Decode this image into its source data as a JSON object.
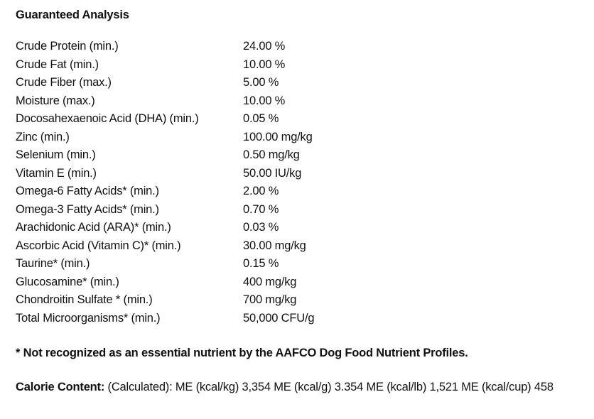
{
  "title": "Guaranteed Analysis",
  "table": {
    "rows": [
      [
        "Crude Protein (min.)",
        "24.00 %"
      ],
      [
        "Crude Fat (min.)",
        "10.00 %"
      ],
      [
        "Crude Fiber (max.)",
        "5.00 %"
      ],
      [
        "Moisture (max.)",
        "10.00 %"
      ],
      [
        "Docosahexaenoic Acid (DHA) (min.)",
        "0.05 %"
      ],
      [
        "Zinc (min.)",
        "100.00 mg/kg"
      ],
      [
        "Selenium (min.)",
        "0.50 mg/kg"
      ],
      [
        "Vitamin E (min.)",
        "50.00 IU/kg"
      ],
      [
        "Omega-6 Fatty Acids* (min.)",
        "2.00 %"
      ],
      [
        "Omega-3 Fatty Acids* (min.)",
        "0.70 %"
      ],
      [
        "Arachidonic Acid (ARA)* (min.)",
        "0.03 %"
      ],
      [
        "Ascorbic Acid (Vitamin C)* (min.)",
        "30.00 mg/kg"
      ],
      [
        "Taurine* (min.)",
        "0.15 %"
      ],
      [
        "Glucosamine* (min.)",
        "400 mg/kg"
      ],
      [
        "Chondroitin Sulfate * (min.)",
        "700 mg/kg"
      ],
      [
        "Total Microorganisms* (min.)",
        "50,000 CFU/g"
      ]
    ]
  },
  "footnote": "* Not recognized as an essential nutrient by the AAFCO Dog Food Nutrient Profiles.",
  "calorie": {
    "label": "Calorie Content:",
    "text": "(Calculated): ME (kcal/kg) 3,354 ME (kcal/g) 3.354 ME (kcal/lb) 1,521 ME (kcal/cup) 458"
  }
}
